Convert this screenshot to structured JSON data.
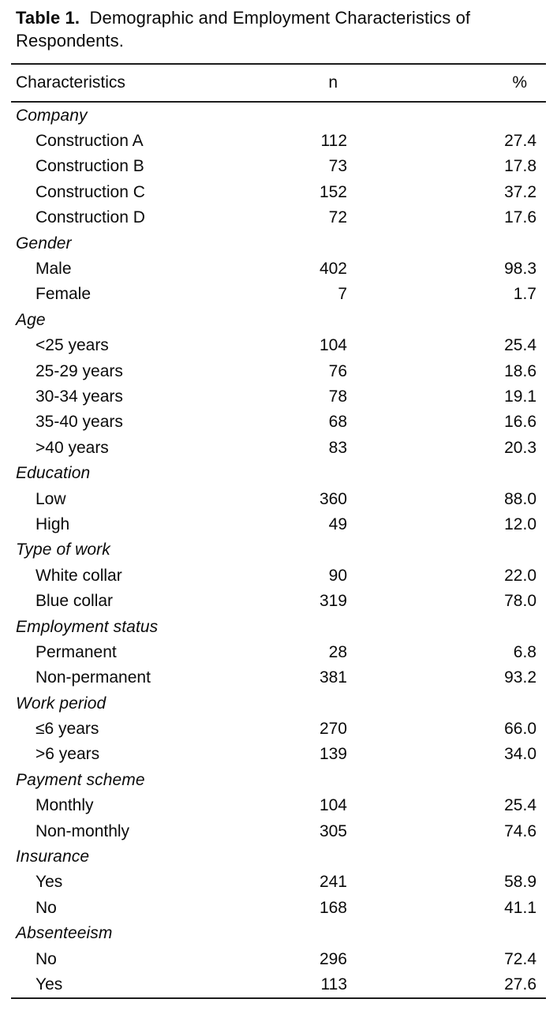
{
  "page": {
    "caption_label": "Table 1.",
    "caption_text": "Demographic and Employment Characteristics of Respondents."
  },
  "table": {
    "columns": [
      "Characteristics",
      "n",
      "%"
    ],
    "sections": [
      {
        "name": "Company",
        "rows": [
          {
            "label": "Construction A",
            "n": "112",
            "pct": "27.4"
          },
          {
            "label": "Construction B",
            "n": "73",
            "pct": "17.8"
          },
          {
            "label": "Construction C",
            "n": "152",
            "pct": "37.2"
          },
          {
            "label": "Construction D",
            "n": "72",
            "pct": "17.6"
          }
        ]
      },
      {
        "name": "Gender",
        "rows": [
          {
            "label": "Male",
            "n": "402",
            "pct": "98.3"
          },
          {
            "label": "Female",
            "n": "7",
            "pct": "1.7"
          }
        ]
      },
      {
        "name": "Age",
        "rows": [
          {
            "label": "<25 years",
            "n": "104",
            "pct": "25.4"
          },
          {
            "label": "25-29 years",
            "n": "76",
            "pct": "18.6"
          },
          {
            "label": "30-34 years",
            "n": "78",
            "pct": "19.1"
          },
          {
            "label": "35-40 years",
            "n": "68",
            "pct": "16.6"
          },
          {
            "label": ">40 years",
            "n": "83",
            "pct": "20.3"
          }
        ]
      },
      {
        "name": "Education",
        "rows": [
          {
            "label": "Low",
            "n": "360",
            "pct": "88.0"
          },
          {
            "label": "High",
            "n": "49",
            "pct": "12.0"
          }
        ]
      },
      {
        "name": "Type of work",
        "rows": [
          {
            "label": "White collar",
            "n": "90",
            "pct": "22.0"
          },
          {
            "label": "Blue collar",
            "n": "319",
            "pct": "78.0"
          }
        ]
      },
      {
        "name": "Employment status",
        "rows": [
          {
            "label": "Permanent",
            "n": "28",
            "pct": "6.8"
          },
          {
            "label": "Non-permanent",
            "n": "381",
            "pct": "93.2"
          }
        ]
      },
      {
        "name": "Work period",
        "rows": [
          {
            "label": "≤6 years",
            "n": "270",
            "pct": "66.0"
          },
          {
            "label": ">6 years",
            "n": "139",
            "pct": "34.0"
          }
        ]
      },
      {
        "name": "Payment scheme",
        "rows": [
          {
            "label": "Monthly",
            "n": "104",
            "pct": "25.4"
          },
          {
            "label": "Non-monthly",
            "n": "305",
            "pct": "74.6"
          }
        ]
      },
      {
        "name": "Insurance",
        "rows": [
          {
            "label": "Yes",
            "n": "241",
            "pct": "58.9"
          },
          {
            "label": "No",
            "n": "168",
            "pct": "41.1"
          }
        ]
      },
      {
        "name": "Absenteeism",
        "rows": [
          {
            "label": "No",
            "n": "296",
            "pct": "72.4"
          },
          {
            "label": "Yes",
            "n": "113",
            "pct": "27.6"
          }
        ]
      }
    ]
  }
}
